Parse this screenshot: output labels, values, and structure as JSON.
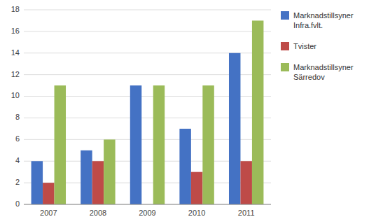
{
  "chart_data": {
    "type": "bar",
    "categories": [
      "2007",
      "2008",
      "2009",
      "2010",
      "2011"
    ],
    "series": [
      {
        "name": "Marknadstillsyner\nInfra.fvlt.",
        "color": "#4472C4",
        "values": [
          4,
          5,
          11,
          7,
          14
        ]
      },
      {
        "name": "Tvister",
        "color": "#BE4B48",
        "values": [
          2,
          4,
          0,
          3,
          4
        ]
      },
      {
        "name": "Marknadstillsyner\nSärredov",
        "color": "#9BBB59",
        "values": [
          11,
          6,
          11,
          11,
          17
        ]
      }
    ],
    "ylim": [
      0,
      18
    ],
    "yticks": [
      0,
      2,
      4,
      6,
      8,
      10,
      12,
      14,
      16,
      18
    ],
    "grid": true,
    "legend": "right"
  }
}
